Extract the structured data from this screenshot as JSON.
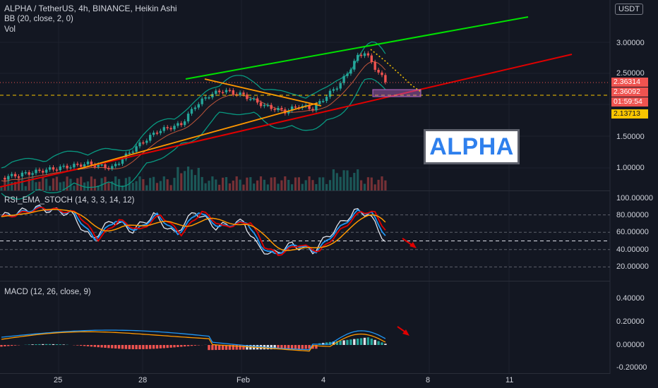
{
  "header": {
    "symbol_line": "ALPHA / TetherUS, 4h, BINANCE, Heikin Ashi",
    "bb_line": "BB (20, close, 2, 0)",
    "vol_line": "Vol",
    "currency": "USDT"
  },
  "price_axis": {
    "ticks": [
      "3.00000",
      "2.50000",
      "1.50000",
      "1.00000"
    ],
    "tags": [
      {
        "label": "2.36314",
        "color": "#ef5350"
      },
      {
        "label": "2.36092",
        "color": "#ef5350"
      },
      {
        "label": "01:59:54",
        "color": "#ef5350"
      },
      {
        "label": "2.13713",
        "color": "#f9c500"
      }
    ]
  },
  "annotation": {
    "text": "ALPHA"
  },
  "rsi_panel": {
    "title": "RSI_EMA_STOCH (14, 3, 3, 14, 12)",
    "ticks": [
      "100.00000",
      "80.00000",
      "60.00000",
      "40.00000",
      "20.00000"
    ]
  },
  "macd_panel": {
    "title": "MACD (12, 26, close, 9)",
    "ticks": [
      "0.40000",
      "0.20000",
      "0.00000",
      "-0.20000"
    ]
  },
  "time_axis": {
    "ticks": [
      "25",
      "28",
      "Feb",
      "4",
      "8",
      "11"
    ]
  },
  "colors": {
    "bg": "#131722",
    "up": "#26a69a",
    "down": "#ef5350",
    "bb": "#089981",
    "trend_green": "#00e000",
    "trend_red": "#e00000",
    "trend_orange": "#ff9800"
  }
}
